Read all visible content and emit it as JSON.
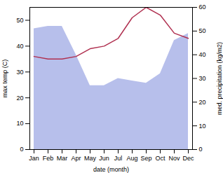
{
  "chart_data": {
    "type": "combo",
    "xlabel": "date (month)",
    "ylabel": "max temp (C)",
    "y2label": "med. precipitation (kg/m2)",
    "categories": [
      "Jan",
      "Feb",
      "Mar",
      "Apr",
      "May",
      "Jun",
      "Jul",
      "Aug",
      "Sep",
      "Oct",
      "Nov",
      "Dec"
    ],
    "series": [
      {
        "type": "area",
        "axis": "y2",
        "color": "#aab4e8",
        "values": [
          51,
          52,
          52,
          40,
          27,
          27,
          30,
          29,
          28,
          32,
          46,
          49
        ]
      },
      {
        "type": "line",
        "axis": "y",
        "color": "#b03050",
        "values": [
          36,
          35,
          35,
          36,
          39,
          40,
          43,
          51,
          55,
          52,
          45,
          43
        ]
      }
    ],
    "ylim": [
      0,
      55
    ],
    "yticks": [
      0,
      10,
      20,
      30,
      40,
      50
    ],
    "y2lim": [
      0,
      60
    ],
    "y2ticks": [
      0,
      10,
      20,
      30,
      40,
      50,
      60
    ]
  }
}
